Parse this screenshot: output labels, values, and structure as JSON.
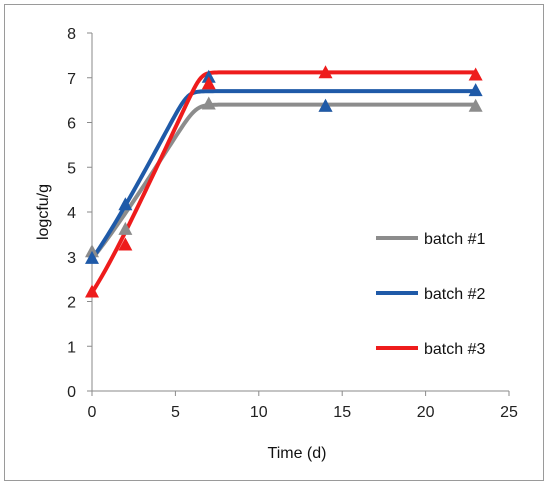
{
  "chart_data": {
    "type": "scatter",
    "title": "",
    "xlabel": "Time (d)",
    "ylabel": "logcfu/g",
    "xlim": [
      0,
      25
    ],
    "ylim": [
      0,
      8
    ],
    "xticks": [
      0,
      5,
      10,
      15,
      20,
      25
    ],
    "yticks": [
      0,
      1,
      2,
      3,
      4,
      5,
      6,
      7,
      8
    ],
    "grid": false,
    "legend_position": "right",
    "series": [
      {
        "name": "batch #1",
        "color": "#8c8c8c",
        "x": [
          0,
          2,
          7,
          14,
          23
        ],
        "y": [
          3.1,
          3.6,
          6.4,
          6.35,
          6.35
        ],
        "fit": {
          "y0": 2.95,
          "ymax": 6.4,
          "mumax": 0.59,
          "lag": 0.4
        }
      },
      {
        "name": "batch #2",
        "color": "#1f5aa8",
        "x": [
          0,
          2,
          7,
          14,
          23
        ],
        "y": [
          2.95,
          4.15,
          7.0,
          6.35,
          6.7
        ],
        "fit": {
          "y0": 2.95,
          "ymax": 6.7,
          "mumax": 0.7,
          "lag": 0.4
        }
      },
      {
        "name": "batch #3",
        "color": "#ee1c1c",
        "x": [
          0,
          2,
          7,
          14,
          23
        ],
        "y": [
          2.2,
          3.25,
          6.85,
          7.1,
          7.05
        ],
        "fit": {
          "y0": 2.2,
          "ymax": 7.12,
          "mumax": 0.8,
          "lag": 0.4
        }
      }
    ]
  }
}
